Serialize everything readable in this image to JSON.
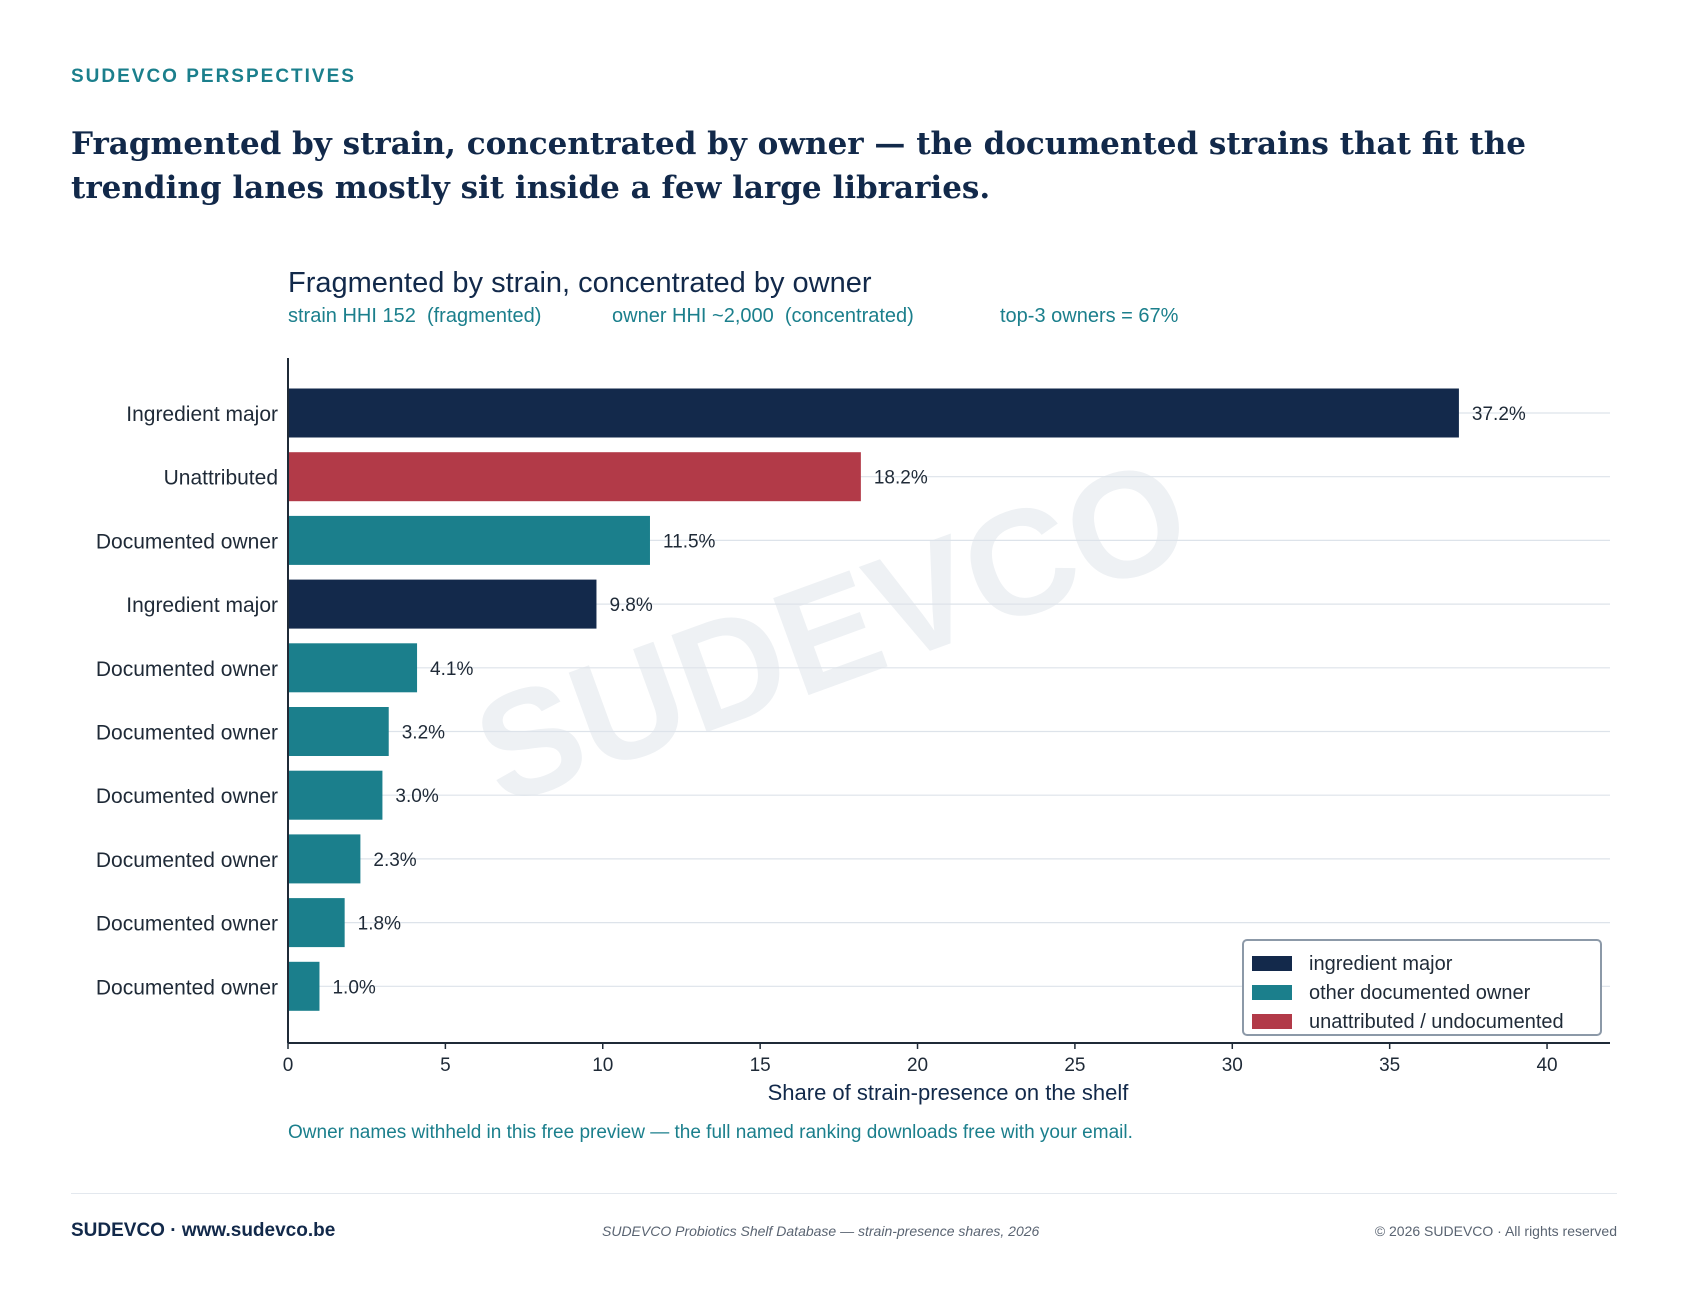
{
  "header": {
    "kicker": "SUDEVCO PERSPECTIVES",
    "headline": "Fragmented by strain, concentrated by owner — the documented strains that fit the trending lanes mostly sit inside a few large libraries."
  },
  "watermark": "SUDEVCO",
  "colors": {
    "ingredient_major": "#13294b",
    "other_documented_owner": "#1b7f8c",
    "unattributed": "#b23a48",
    "accent_text": "#1b7f8c"
  },
  "chart_data": {
    "type": "bar",
    "orientation": "horizontal",
    "title": "Fragmented by strain, concentrated by owner",
    "subtitle": [
      "strain HHI 152  (fragmented)",
      "owner HHI ~2,000  (concentrated)",
      "top-3 owners = 67%"
    ],
    "categories": [
      "Ingredient major",
      "Unattributed",
      "Documented owner",
      "Ingredient major",
      "Documented owner",
      "Documented owner",
      "Documented owner",
      "Documented owner",
      "Documented owner",
      "Documented owner"
    ],
    "values": [
      37.2,
      18.2,
      11.5,
      9.8,
      4.1,
      3.2,
      3.0,
      2.3,
      1.8,
      1.0
    ],
    "value_labels": [
      "37.2%",
      "18.2%",
      "11.5%",
      "9.8%",
      "4.1%",
      "3.2%",
      "3.0%",
      "2.3%",
      "1.8%",
      "1.0%"
    ],
    "groups": [
      "ingredient_major",
      "unattributed",
      "other_documented_owner",
      "ingredient_major",
      "other_documented_owner",
      "other_documented_owner",
      "other_documented_owner",
      "other_documented_owner",
      "other_documented_owner",
      "other_documented_owner"
    ],
    "xlabel": "Share of strain-presence on the shelf",
    "ylabel": "",
    "xlim": [
      0,
      42
    ],
    "xticks": [
      0,
      5,
      10,
      15,
      20,
      25,
      30,
      35,
      40
    ],
    "grid": "horizontal",
    "legend": {
      "position": "bottom-right",
      "entries": [
        {
          "label": "ingredient major",
          "group": "ingredient_major"
        },
        {
          "label": "other documented owner",
          "group": "other_documented_owner"
        },
        {
          "label": "unattributed / undocumented",
          "group": "unattributed"
        }
      ]
    },
    "note": "Owner names withheld in this free preview — the full named ranking downloads free with your email."
  },
  "footer": {
    "brand": "SUDEVCO · www.sudevco.be",
    "source": "SUDEVCO Probiotics Shelf Database — strain-presence shares, 2026",
    "copyright": "© 2026 SUDEVCO · All rights reserved"
  }
}
